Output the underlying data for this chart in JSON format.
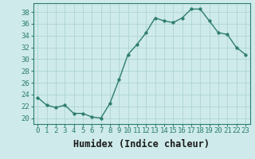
{
  "x": [
    0,
    1,
    2,
    3,
    4,
    5,
    6,
    7,
    8,
    9,
    10,
    11,
    12,
    13,
    14,
    15,
    16,
    17,
    18,
    19,
    20,
    21,
    22,
    23
  ],
  "y": [
    23.5,
    22.2,
    21.8,
    22.2,
    20.8,
    20.8,
    20.2,
    20.0,
    22.5,
    26.5,
    30.8,
    32.5,
    34.5,
    37.0,
    36.5,
    36.2,
    37.0,
    38.5,
    38.5,
    36.5,
    34.5,
    34.2,
    32.0,
    30.8
  ],
  "line_color": "#2e7d6e",
  "marker": "o",
  "marker_size": 2.5,
  "bg_color": "#ceeaea",
  "grid_color": "#aed4d4",
  "xlabel": "Humidex (Indice chaleur)",
  "xlim": [
    -0.5,
    23.5
  ],
  "ylim": [
    19,
    39.5
  ],
  "yticks": [
    20,
    22,
    24,
    26,
    28,
    30,
    32,
    34,
    36,
    38
  ],
  "xtick_labels": [
    "0",
    "1",
    "2",
    "3",
    "4",
    "5",
    "6",
    "7",
    "8",
    "9",
    "10",
    "11",
    "12",
    "13",
    "14",
    "15",
    "16",
    "17",
    "18",
    "19",
    "20",
    "21",
    "22",
    "23"
  ],
  "tick_fontsize": 6.5,
  "xlabel_fontsize": 8.5,
  "spine_color": "#2e7d6e"
}
